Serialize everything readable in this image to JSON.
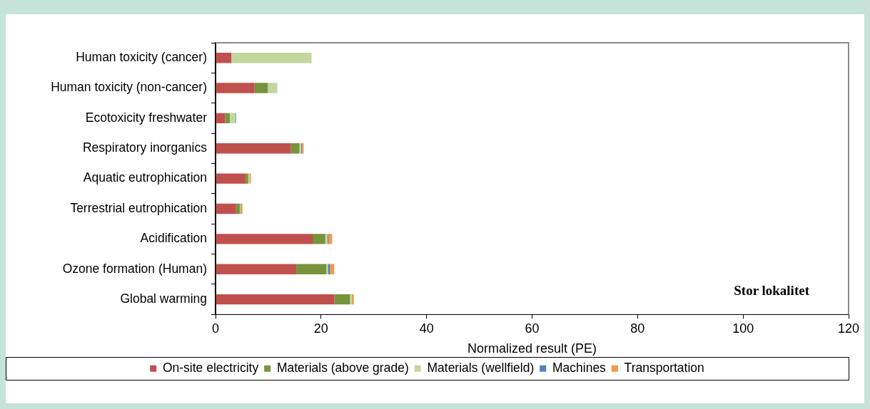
{
  "chart_data": {
    "type": "bar",
    "orientation": "horizontal",
    "stacked": true,
    "categories": [
      "Human toxicity (cancer)",
      "Human toxicity (non-cancer)",
      "Ecotoxicity freshwater",
      "Respiratory inorganics",
      "Aquatic eutrophication",
      "Terrestrial eutrophication",
      "Acidification",
      "Ozone formation (Human)",
      "Global warming"
    ],
    "series": [
      {
        "name": "On-site electricity",
        "color": "#c0504d",
        "values": [
          3.0,
          7.4,
          1.8,
          14.3,
          5.7,
          3.9,
          18.4,
          15.3,
          22.5
        ]
      },
      {
        "name": "Materials (above grade)",
        "color": "#77933c",
        "values": [
          0,
          2.5,
          0.9,
          1.6,
          0.5,
          0.7,
          2.4,
          5.7,
          3.0
        ]
      },
      {
        "name": "Materials (wellfield)",
        "color": "#c3d69b",
        "values": [
          15.2,
          1.8,
          1.1,
          0.3,
          0.3,
          0.1,
          0.4,
          0.3,
          0.3
        ]
      },
      {
        "name": "Machines",
        "color": "#4f81bd",
        "values": [
          0,
          0,
          0.1,
          0.2,
          0,
          0.1,
          0.2,
          0.4,
          null
        ]
      },
      {
        "name": "Transportation",
        "color": "#f79646",
        "values": [
          0,
          0,
          0,
          0.3,
          0.2,
          0.3,
          0.7,
          0.8,
          0.4
        ]
      }
    ],
    "xlim": [
      0,
      120
    ],
    "xticks": [
      0,
      20,
      40,
      60,
      80,
      100,
      120
    ],
    "xlabel": "Normalized result (PE)",
    "annotations": [
      "Stor lokalitet"
    ],
    "legend": "bottom",
    "grid": false
  }
}
